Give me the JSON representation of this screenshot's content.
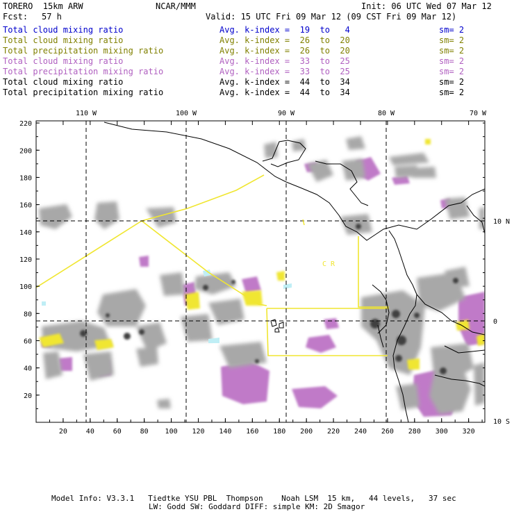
{
  "header": {
    "model": "TORERO  15km ARW",
    "institution": "NCAR/MMM",
    "init": "Init: 06 UTC Wed 07 Mar 12",
    "fcst_label": "Fcst:",
    "fcst_value": "57 h",
    "valid": "Valid: 15 UTC Fri 09 Mar 12 (09 CST Fri 09 Mar 12)"
  },
  "legend": [
    {
      "field": "Total cloud mixing ratio",
      "kindex": "Avg. k-index =  19  to   4",
      "sm": "sm= 2",
      "color": "#0000cc"
    },
    {
      "field": "Total cloud mixing ratio",
      "kindex": "Avg. k-index =  26  to  20",
      "sm": "sm= 2",
      "color": "#808000"
    },
    {
      "field": "Total precipitation mixing ratio",
      "kindex": "Avg. k-index =  26  to  20",
      "sm": "sm= 2",
      "color": "#808000"
    },
    {
      "field": "Total cloud mixing ratio",
      "kindex": "Avg. k-index =  33  to  25",
      "sm": "sm= 2",
      "color": "#b060c0"
    },
    {
      "field": "Total precipitation mixing ratio",
      "kindex": "Avg. k-index =  33  to  25",
      "sm": "sm= 2",
      "color": "#b060c0"
    },
    {
      "field": "Total cloud mixing ratio",
      "kindex": "Avg. k-index =  44  to  34",
      "sm": "sm= 2",
      "color": "#000000"
    },
    {
      "field": "Total precipitation mixing ratio",
      "kindex": "Avg. k-index =  44  to  34",
      "sm": "sm= 2",
      "color": "#000000"
    }
  ],
  "axes": {
    "lon_labels": [
      "110 W",
      "100 W",
      "90 W",
      "80 W",
      "70 W"
    ],
    "lat_labels": [
      "10 N",
      "0",
      "10 S"
    ],
    "y_ticks": [
      "220",
      "200",
      "180",
      "160",
      "140",
      "120",
      "100",
      "80",
      "60",
      "40",
      "20"
    ],
    "x_ticks": [
      "20",
      "40",
      "60",
      "80",
      "100",
      "120",
      "140",
      "160",
      "180",
      "200",
      "220",
      "240",
      "260",
      "280",
      "300",
      "320"
    ]
  },
  "map_text": {
    "cr": "C  R"
  },
  "colors": {
    "cloud_gray": "#a8a8a8",
    "cloud_dark": "#505050",
    "precip_purple": "#c07ac8",
    "yellow": "#f0e630",
    "cyan": "#bfeef5"
  },
  "footer": {
    "line1": "Model Info: V3.3.1   Tiedtke YSU PBL  Thompson    Noah LSM  15 km,   44 levels,   37 sec",
    "line2": "LW: Godd SW: Goddard DIFF: simple KM: 2D Smagor"
  }
}
